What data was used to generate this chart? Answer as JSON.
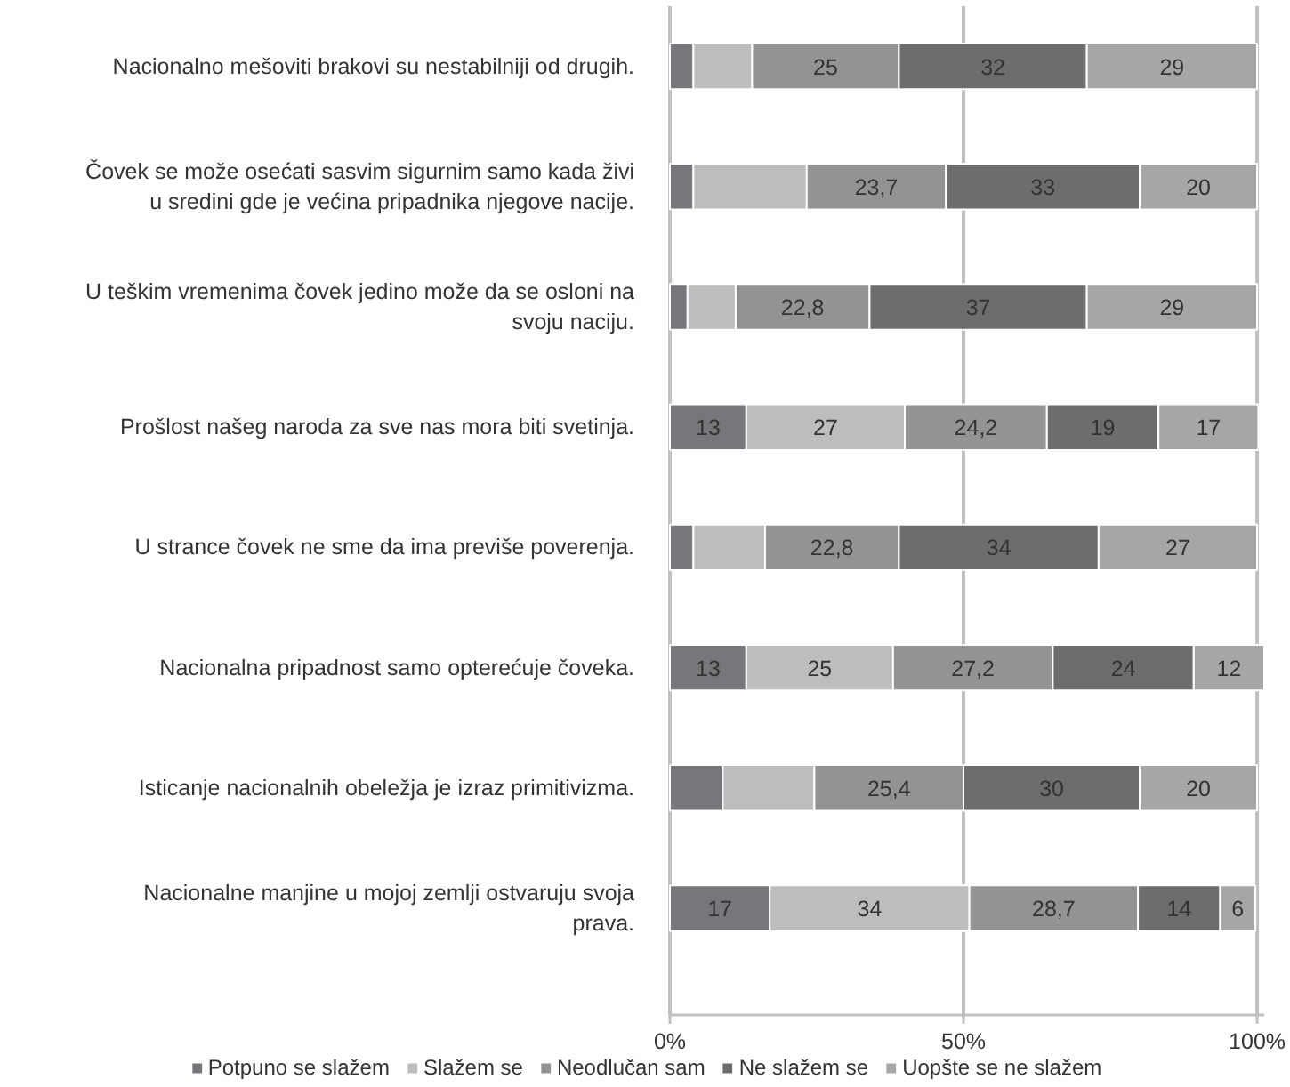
{
  "chart_data": {
    "type": "bar",
    "orientation": "horizontal",
    "stacked": true,
    "categories": [
      "Nacionalno mešoviti brakovi su nestabilniji od drugih.",
      "Čovek se može osećati sasvim sigurnim samo kada živi u sredini gde je većina pripadnika njegove nacije.",
      "U teškim vremenima čovek jedino može da se osloni na svoju naciju.",
      "Prošlost našeg naroda za sve nas mora biti svetinja.",
      "U strance čovek ne sme da ima previše poverenja.",
      "Nacionalna pripadnost samo opterećuje čoveka.",
      "Isticanje nacionalnih obeležja je izraz primitivizma.",
      "Nacionalne manjine u mojoj zemlji ostvaruju svoja prava."
    ],
    "series": [
      {
        "name": "Potpuno se slažem",
        "color": "#77777b",
        "values": [
          4,
          4,
          3,
          13,
          4,
          13,
          9,
          17
        ],
        "value_labels": [
          null,
          null,
          null,
          "13",
          null,
          "13",
          null,
          "17"
        ]
      },
      {
        "name": "Slažem se",
        "color": "#bdbdc0",
        "values": [
          10,
          19.3,
          8.2,
          27,
          12.2,
          25,
          15.6,
          34
        ],
        "value_labels": [
          null,
          null,
          null,
          "27",
          null,
          "25",
          null,
          "34"
        ]
      },
      {
        "name": "Neodlučan sam",
        "color": "#939396",
        "values": [
          25,
          23.7,
          22.8,
          24.2,
          22.8,
          27.2,
          25.4,
          28.7
        ],
        "value_labels": [
          "25",
          "23,7",
          "22,8",
          "24,2",
          "22,8",
          "27,2",
          "25,4",
          "28,7"
        ]
      },
      {
        "name": "Ne slažem se",
        "color": "#6d6d70",
        "values": [
          32,
          33,
          37,
          19,
          34,
          24,
          30,
          14
        ],
        "value_labels": [
          "32",
          "33",
          "37",
          "19",
          "34",
          "24",
          "30",
          "14"
        ]
      },
      {
        "name": "Uopšte se ne slažem",
        "color": "#a6a6a9",
        "values": [
          29,
          20,
          29,
          17,
          27,
          12,
          20,
          6
        ],
        "value_labels": [
          "29",
          "20",
          "29",
          "17",
          "27",
          "12",
          "20",
          "6"
        ]
      }
    ],
    "xlim": [
      0,
      101.2
    ],
    "xticks": [
      {
        "value": 0,
        "label": "0%"
      },
      {
        "value": 50,
        "label": "50%"
      },
      {
        "value": 100,
        "label": "100%"
      }
    ],
    "grid": "x",
    "legend": "bottom"
  }
}
